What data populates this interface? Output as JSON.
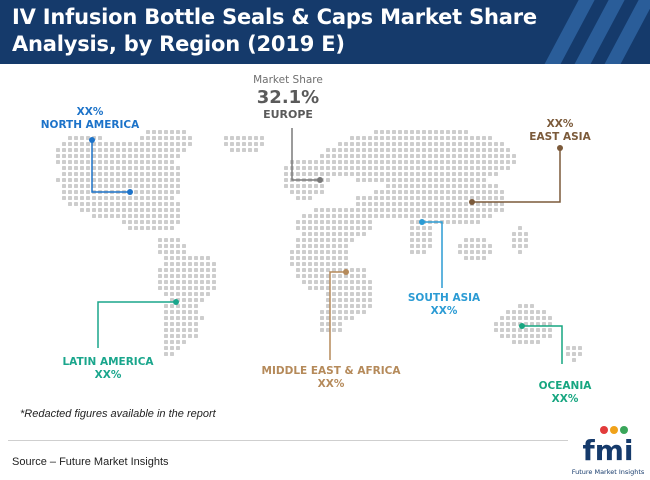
{
  "header": {
    "title_line1": "IV Infusion Bottle Seals & Caps Market Share",
    "title_line2": "Analysis, by Region (2019 E)"
  },
  "regions": {
    "north_america": {
      "value": "XX%",
      "name": "NORTH AMERICA",
      "color": "#1d73c9"
    },
    "europe": {
      "caption": "Market Share",
      "value": "32.1%",
      "name": "EUROPE",
      "color": "#7a7a7a"
    },
    "east_asia": {
      "value": "XX%",
      "name": "EAST ASIA",
      "color": "#7b5a3a"
    },
    "south_asia": {
      "name": "SOUTH ASIA",
      "value": "XX%",
      "color": "#2b9bd4"
    },
    "latin_america": {
      "name": "LATIN AMERICA",
      "value": "XX%",
      "color": "#1aa68c"
    },
    "middle_east_africa": {
      "name": "MIDDLE EAST & AFRICA",
      "value": "XX%",
      "color": "#b58a5a"
    },
    "oceania": {
      "name": "OCEANIA",
      "value": "XX%",
      "color": "#17a680"
    }
  },
  "note": "*Redacted figures available in the report",
  "source": "Source – Future Market Insights",
  "logo": {
    "text": "fmi",
    "subtitle": "Future Market Insights"
  }
}
